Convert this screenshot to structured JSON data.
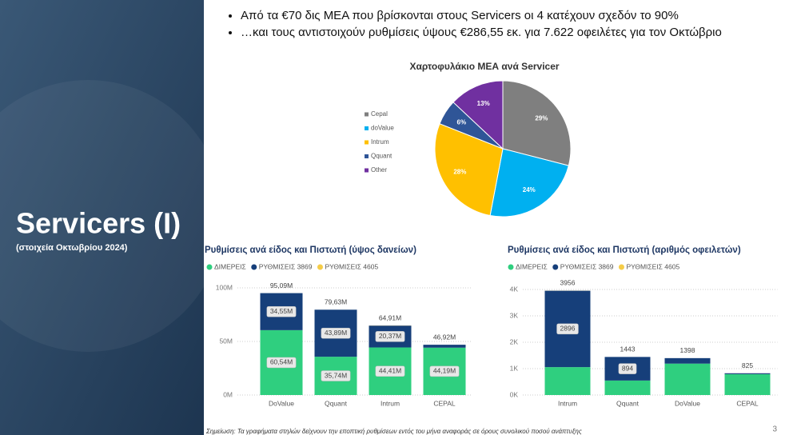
{
  "slide": {
    "title": "Servicers (I)",
    "subtitle": "(στοιχεία Οκτωβρίου 2024)",
    "bullets": [
      "Από τα €70 δις ΜΕΑ που βρίσκονται στους Servicers οι 4 κατέχουν σχεδόν το 90%",
      "…και τους αντιστοιχούν ρυθμίσεις ύψους €286,55 εκ. για 7.622 οφειλέτες για τον Οκτώβριο"
    ],
    "footnote": "Σημείωση: Τα γραφήματα στηλών δείχνουν την εποπτική ρυθμίσεων εντός του μήνα αναφοράς σε όρους συνολικού ποσού ανάπτυξης",
    "page_number": "3"
  },
  "chart_data": [
    {
      "type": "pie",
      "title": "Χαρτοφυλάκιο ΜΕΑ ανά Servicer",
      "categories": [
        "Cepal",
        "doValue",
        "Intrum",
        "Qquant",
        "Other"
      ],
      "values": [
        29,
        24,
        28,
        6,
        13
      ],
      "value_labels": [
        "29%",
        "24%",
        "28%",
        "6%",
        "13%"
      ],
      "colors": [
        "#7f7f7f",
        "#00b0f0",
        "#ffc000",
        "#2f5597",
        "#7030a0"
      ],
      "legend": "left"
    },
    {
      "type": "stacked-bar",
      "title": "Ρυθμίσεις ανά είδος και Πιστωτή (ύψος δανείων)",
      "categories": [
        "DoValue",
        "Qquant",
        "Intrum",
        "CEPAL"
      ],
      "series": [
        {
          "name": "ΔΙΜΕΡΕΙΣ",
          "color": "#2fcf7f",
          "values": [
            60.54,
            35.74,
            44.41,
            44.19
          ],
          "value_labels": [
            "60,54M",
            "35,74M",
            "44,41M",
            "44,19M"
          ]
        },
        {
          "name": "ΡΥΘΜΙΣΕΙΣ 3869",
          "color": "#163f7a",
          "values": [
            34.55,
            43.89,
            20.37,
            2.73
          ],
          "value_labels": [
            "34,55M",
            "43,89M",
            "20,37M",
            null
          ]
        },
        {
          "name": "ΡΥΘΜΙΣΕΙΣ 4605",
          "color": "#f5cc47",
          "values": [
            0,
            0,
            0.13,
            0
          ],
          "value_labels": [
            null,
            null,
            null,
            null
          ]
        }
      ],
      "totals": {
        "values": [
          95.09,
          79.63,
          64.91,
          46.92
        ],
        "value_labels": [
          "95,09M",
          "79,63M",
          "64,91M",
          "46,92M"
        ]
      },
      "ylim": [
        0,
        100
      ],
      "yticks": [
        {
          "value": 0,
          "label": "0M"
        },
        {
          "value": 50,
          "label": "50M"
        },
        {
          "value": 100,
          "label": "100M"
        }
      ],
      "grid": true
    },
    {
      "type": "stacked-bar",
      "title": "Ρυθμίσεις ανά είδος και Πιστωτή (αριθμός οφειλετών)",
      "categories": [
        "Intrum",
        "Qquant",
        "DoValue",
        "CEPAL"
      ],
      "series": [
        {
          "name": "ΔΙΜΕΡΕΙΣ",
          "color": "#2fcf7f",
          "values": [
            1057,
            549,
            1190,
            790
          ]
        },
        {
          "name": "ΡΥΘΜΙΣΕΙΣ 3869",
          "color": "#163f7a",
          "values": [
            2896,
            894,
            208,
            35
          ],
          "value_labels": [
            "2896",
            "894",
            null,
            null
          ]
        },
        {
          "name": "ΡΥΘΜΙΣΕΙΣ 4605",
          "color": "#f5cc47",
          "values": [
            3,
            0,
            0,
            0
          ]
        }
      ],
      "totals": {
        "values": [
          3956,
          1443,
          1398,
          825
        ]
      },
      "ylim": [
        0,
        4000
      ],
      "yticks": [
        {
          "value": 0,
          "label": "0K"
        },
        {
          "value": 1000,
          "label": "1K"
        },
        {
          "value": 2000,
          "label": "2K"
        },
        {
          "value": 3000,
          "label": "3K"
        },
        {
          "value": 4000,
          "label": "4K"
        }
      ],
      "grid": true
    }
  ]
}
